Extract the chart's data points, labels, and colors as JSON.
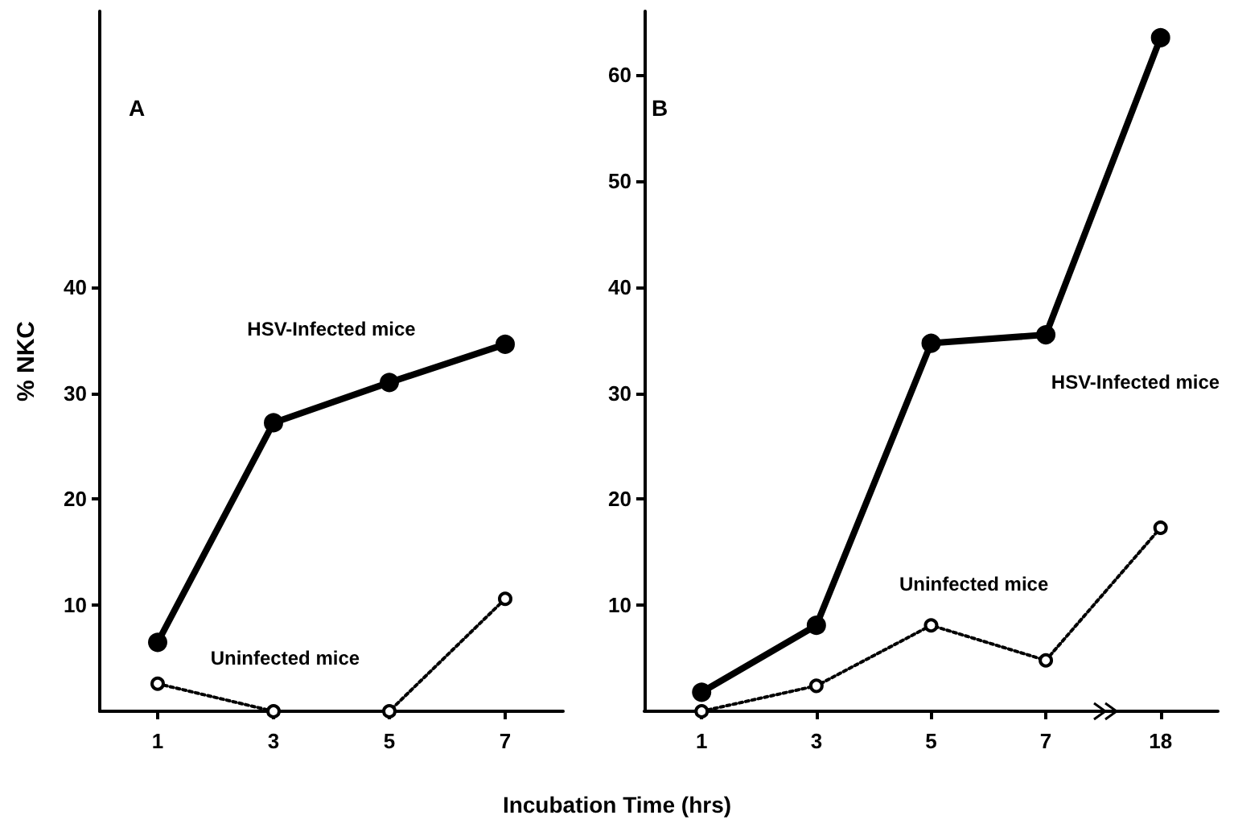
{
  "chart_data": [
    {
      "type": "line",
      "ylabel": "% NKC",
      "xlabel": "Incubation Time (hrs)",
      "annotations": [
        "A"
      ],
      "categories": [
        "1",
        "3",
        "5",
        "7"
      ],
      "ylim": [
        0,
        66
      ],
      "yticks": [
        10,
        20,
        30,
        40
      ],
      "marker": "circle",
      "series": [
        {
          "name": "HSV-Infected mice",
          "color": "#000000",
          "line_style": "solid",
          "values": [
            6.5,
            27.2,
            31,
            34.6
          ]
        },
        {
          "name": "Uninfected mice",
          "color": "#000000",
          "line_style": "dotted",
          "values": [
            2.6,
            0,
            0,
            10.6
          ]
        }
      ]
    },
    {
      "type": "line",
      "annotations": [
        "B"
      ],
      "categories": [
        "1",
        "3",
        "5",
        "7",
        "18"
      ],
      "ylim": [
        0,
        66
      ],
      "yticks": [
        10,
        20,
        30,
        40,
        50,
        60
      ],
      "marker": "circle",
      "series": [
        {
          "name": "HSV-Infected mice",
          "color": "#000000",
          "line_style": "solid",
          "values": [
            1.8,
            8.1,
            34.7,
            35.5,
            63.5
          ]
        },
        {
          "name": "Uninfected mice",
          "color": "#000000",
          "line_style": "dotted",
          "values": [
            0,
            2.4,
            8.1,
            4.8,
            17.3
          ]
        }
      ]
    }
  ]
}
